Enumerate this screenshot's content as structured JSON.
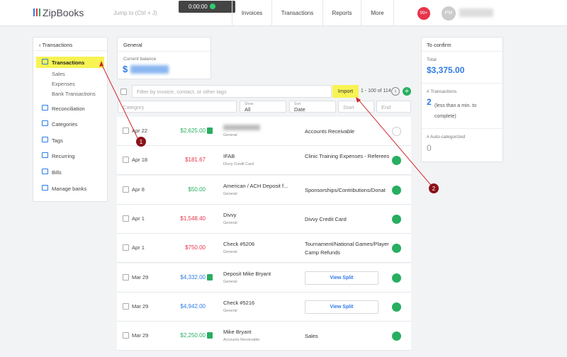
{
  "header": {
    "logo": "ZipBooks",
    "search": "Jump to (Ctrl + J)",
    "timer": "0:00:00",
    "nav": [
      "Invoices",
      "Transactions",
      "Reports",
      "More"
    ],
    "badge": "99+",
    "avatar": "PM"
  },
  "sidebar": {
    "back": "Transactions",
    "items": [
      "Transactions",
      "Sales",
      "Expenses",
      "Bank Transactions",
      "Reconciliation",
      "Categories",
      "Tags",
      "Recurring",
      "Bills",
      "Manage banks"
    ]
  },
  "account_card": {
    "title": "General",
    "label": "Current balance",
    "balance": "$"
  },
  "toolbar": {
    "filter": "Filter by invoice, contact, or other tags",
    "import": "Import",
    "count": "1 - 100 of 114",
    "category": "Category",
    "show_label": "Show",
    "show": "All",
    "sort_label": "Sort",
    "sort": "Date",
    "start": "Start",
    "end": "End"
  },
  "rows": [
    {
      "date": "Apr 22",
      "amount": "$2,625.00",
      "color": "#27ae60",
      "badge": true,
      "name": "",
      "account": "General",
      "category": "Accounts Receivable",
      "confirmed": false
    },
    {
      "date": "Apr 18",
      "amount": "$181.67",
      "color": "#e8334a",
      "badge": false,
      "name": "IFAB",
      "account": "Divvy Credit Card",
      "category": "Clinic Training Expenses - Referees",
      "confirmed": true
    },
    {
      "date": "Apr 8",
      "amount": "$50.00",
      "color": "#27ae60",
      "badge": false,
      "name": "American / ACH Deposit f...",
      "account": "General",
      "category": "Sponsorships/Contributions/Donat",
      "confirmed": true
    },
    {
      "date": "Apr 1",
      "amount": "$1,548.40",
      "color": "#e8334a",
      "badge": false,
      "name": "Divvy",
      "account": "General",
      "category": "Divvy Credit Card",
      "confirmed": true
    },
    {
      "date": "Apr 1",
      "amount": "$750.00",
      "color": "#e8334a",
      "badge": false,
      "name": "Check #5206",
      "account": "General",
      "category": "Tournament/National Games/Player Camp Refunds",
      "confirmed": true
    },
    {
      "date": "Mar 29",
      "amount": "$4,332.00",
      "color": "#2d7be5",
      "badge": true,
      "name": "Deposit Mike Bryant",
      "account": "General",
      "button": "View Split",
      "confirmed": true
    },
    {
      "date": "Mar 29",
      "amount": "$4,942.00",
      "color": "#2d7be5",
      "badge": false,
      "name": "Check #5216",
      "account": "General",
      "button": "View Split",
      "confirmed": true
    },
    {
      "date": "Mar 29",
      "amount": "$2,250.00",
      "color": "#27ae60",
      "badge": true,
      "name": "Mike Bryant",
      "account": "Accounts Receivable",
      "category": "Sales",
      "confirmed": true
    }
  ],
  "confirm": {
    "title": "To confirm",
    "total_label": "Total",
    "total": "$3,375.00",
    "tx_label": "# Transactions",
    "tx": "2",
    "tx_note": "(less than a min. to complete)",
    "auto_label": "# Auto-categorized",
    "auto": "0"
  },
  "annotations": [
    "1",
    "2"
  ]
}
